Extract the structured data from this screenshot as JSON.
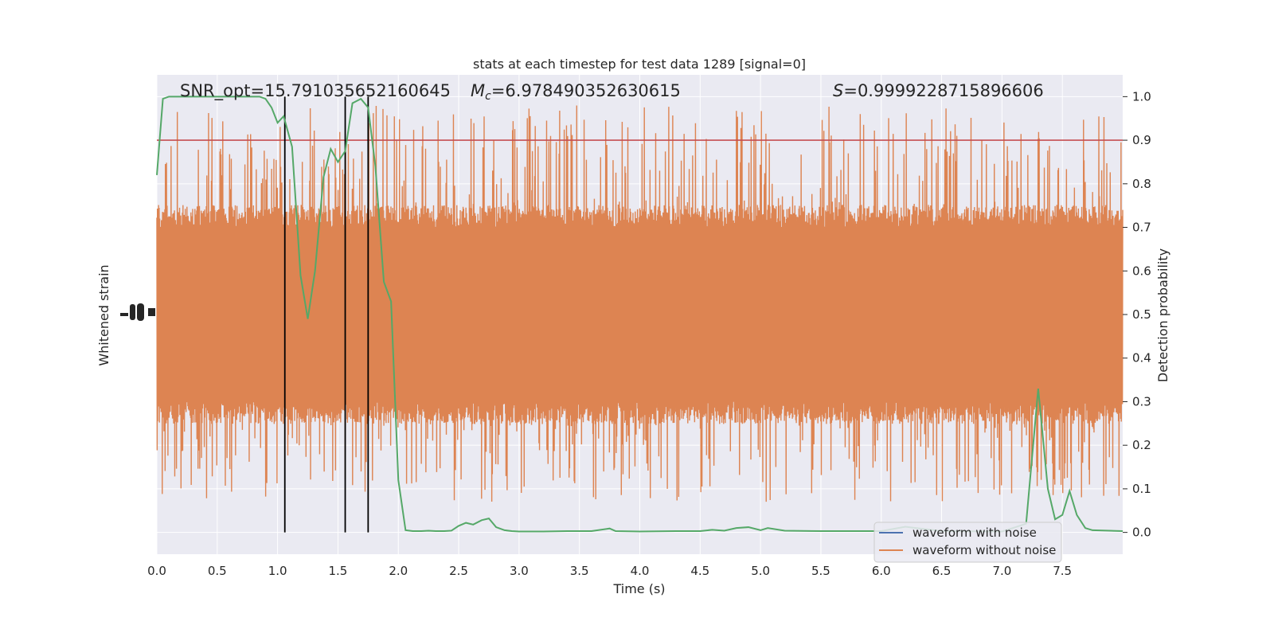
{
  "chart_data": {
    "type": "line",
    "title": "stats at each timestep for test data 1289 [signal=0]",
    "xlabel": "Time (s)",
    "ylabel_left": "Whitened strain",
    "ylabel_right": "Detection probability",
    "xlim": [
      0,
      8.0
    ],
    "ylim_right": [
      -0.05,
      1.05
    ],
    "x_ticks": [
      "0.0",
      "0.5",
      "1.0",
      "1.5",
      "2.0",
      "2.5",
      "3.0",
      "3.5",
      "4.0",
      "4.5",
      "5.0",
      "5.5",
      "6.0",
      "6.5",
      "7.0",
      "7.5"
    ],
    "x_tick_values": [
      0,
      0.5,
      1.0,
      1.5,
      2.0,
      2.5,
      3.0,
      3.5,
      4.0,
      4.5,
      5.0,
      5.5,
      6.0,
      6.5,
      7.0,
      7.5
    ],
    "y_ticks_right": [
      "0.0",
      "0.1",
      "0.2",
      "0.3",
      "0.4",
      "0.5",
      "0.6",
      "0.7",
      "0.8",
      "0.9",
      "1.0"
    ],
    "y_tick_values_right": [
      0,
      0.1,
      0.2,
      0.3,
      0.4,
      0.5,
      0.6,
      0.7,
      0.8,
      0.9,
      1.0
    ],
    "grid": true,
    "legend_position": "lower-right",
    "legend": [
      "waveform with noise",
      "waveform without noise"
    ],
    "annotations": {
      "snr": "SNR_opt=15.791035652160645",
      "mc_symbol": "M",
      "mc_sub": "c",
      "mc_value": "=6.978490352630615",
      "s_symbol": "S",
      "s_value": "=0.9999228715896606"
    },
    "threshold": 0.9,
    "vertical_lines_x": [
      1.06,
      1.56,
      1.75
    ],
    "noise_band": {
      "core_low": 0.3,
      "core_high": 0.7,
      "spike_low": 0.07,
      "spike_high": 0.98
    },
    "detection_probability": {
      "x": [
        0.0,
        0.05,
        0.1,
        0.15,
        0.2,
        0.25,
        0.3,
        0.35,
        0.4,
        0.45,
        0.5,
        0.55,
        0.6,
        0.65,
        0.7,
        0.75,
        0.8,
        0.85,
        0.9,
        0.95,
        1.0,
        1.05,
        1.12,
        1.19,
        1.25,
        1.31,
        1.38,
        1.44,
        1.5,
        1.56,
        1.62,
        1.69,
        1.75,
        1.81,
        1.88,
        1.94,
        2.0,
        2.06,
        2.12,
        2.19,
        2.25,
        2.31,
        2.38,
        2.44,
        2.5,
        2.56,
        2.62,
        2.69,
        2.75,
        2.81,
        2.88,
        2.94,
        3.0,
        3.2,
        3.4,
        3.6,
        3.75,
        3.8,
        4.0,
        4.3,
        4.5,
        4.6,
        4.7,
        4.8,
        4.9,
        5.0,
        5.06,
        5.2,
        5.5,
        6.0,
        6.2,
        6.5,
        7.0,
        7.2,
        7.3,
        7.38,
        7.44,
        7.5,
        7.56,
        7.62,
        7.69,
        7.75,
        8.0
      ],
      "y": [
        0.82,
        0.995,
        1.0,
        1.0,
        1.0,
        1.0,
        1.0,
        1.0,
        1.0,
        1.0,
        1.0,
        1.0,
        1.0,
        1.0,
        1.0,
        1.0,
        1.0,
        1.0,
        0.995,
        0.975,
        0.94,
        0.955,
        0.885,
        0.59,
        0.49,
        0.6,
        0.815,
        0.88,
        0.85,
        0.875,
        0.985,
        0.995,
        0.975,
        0.84,
        0.575,
        0.53,
        0.12,
        0.005,
        0.003,
        0.003,
        0.004,
        0.003,
        0.003,
        0.004,
        0.015,
        0.022,
        0.018,
        0.028,
        0.032,
        0.012,
        0.005,
        0.003,
        0.002,
        0.002,
        0.003,
        0.003,
        0.009,
        0.003,
        0.002,
        0.003,
        0.003,
        0.006,
        0.004,
        0.01,
        0.012,
        0.005,
        0.01,
        0.004,
        0.003,
        0.003,
        0.013,
        0.003,
        0.002,
        0.02,
        0.33,
        0.1,
        0.03,
        0.04,
        0.095,
        0.04,
        0.01,
        0.005,
        0.003
      ]
    }
  }
}
